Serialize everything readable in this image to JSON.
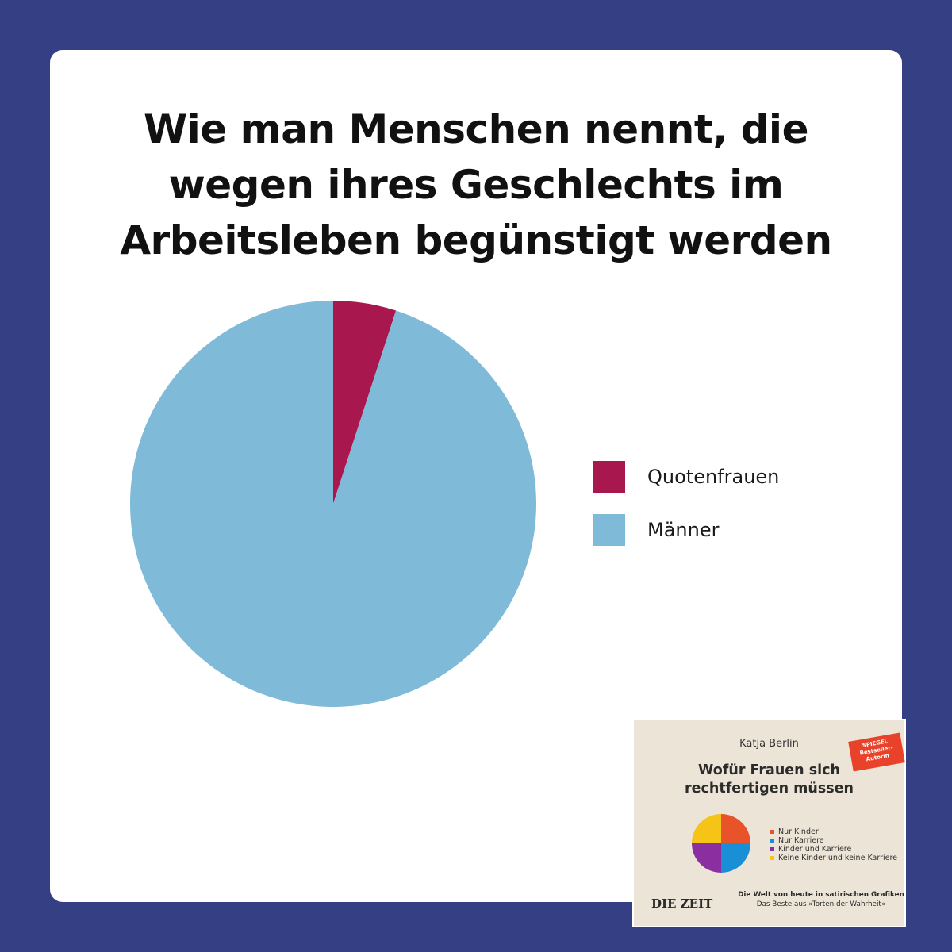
{
  "chart_data": {
    "type": "pie",
    "title_lines": [
      "Wie man Menschen nennt, die",
      "wegen ihres Geschlechts im",
      "Arbeitsleben begünstigt werden"
    ],
    "series": [
      {
        "name": "Quotenfrauen",
        "value": 5,
        "color": "#a8184f"
      },
      {
        "name": "Männer",
        "value": 95,
        "color": "#7fbbd8"
      }
    ],
    "start_angle": "12 o'clock, clockwise",
    "legend_position": "right"
  },
  "book": {
    "author": "Katja Berlin",
    "badge_lines": [
      "SPIEGEL",
      "Bestseller-",
      "Autorin"
    ],
    "title_lines": [
      "Wofür Frauen sich",
      "rechtfertigen müssen"
    ],
    "legend": [
      {
        "label": "Nur Kinder",
        "color": "#e8532a"
      },
      {
        "label": "Nur Karriere",
        "color": "#1a8fd6"
      },
      {
        "label": "Kinder und Karriere",
        "color": "#8a2ea0"
      },
      {
        "label": "Keine Kinder und keine Karriere",
        "color": "#f6c416"
      }
    ],
    "publisher": "DIE ZEIT",
    "subtitle_1": "Die Welt von heute in satirischen Grafiken",
    "subtitle_2": "Das Beste aus »Torten der Wahrheit«"
  },
  "colors": {
    "background": "#343f84",
    "card": "#ffffff"
  }
}
